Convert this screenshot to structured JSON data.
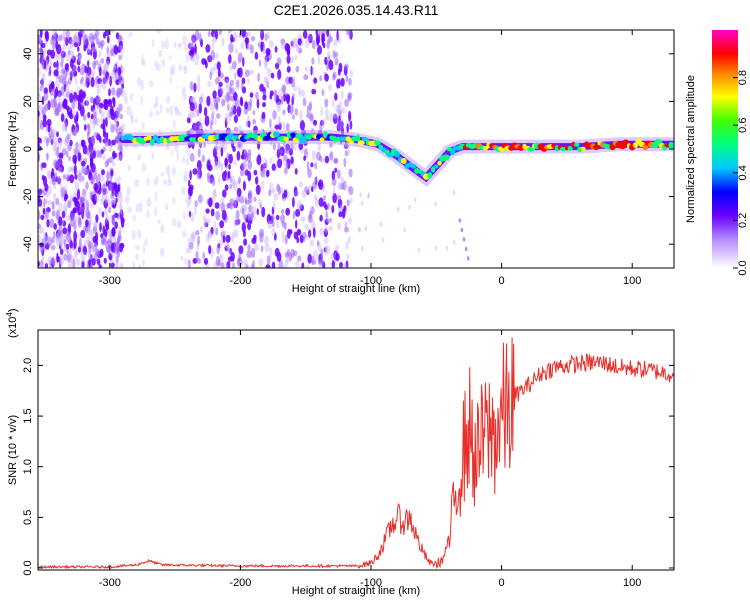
{
  "title": "C2E1.2026.035.14.43.R11",
  "chart_data": [
    {
      "type": "heatmap",
      "name": "spectrogram",
      "xlabel": "Height of straight line (km)",
      "ylabel": "Frequency (Hz)",
      "xlim": [
        -355,
        132
      ],
      "ylim": [
        -50,
        50
      ],
      "x_ticks": [
        -300,
        -200,
        -100,
        0,
        100
      ],
      "x_tick_labels": [
        "-300",
        "-200",
        "-100",
        "0",
        "100"
      ],
      "y_ticks": [
        -40,
        -20,
        0,
        20,
        40
      ],
      "y_tick_labels": [
        "-40",
        "-20",
        "0",
        "20",
        "40"
      ],
      "colorbar": {
        "label": "Normalized spectral amplitude",
        "range": [
          0,
          1
        ],
        "ticks": [
          0.0,
          0.2,
          0.4,
          0.6,
          0.8
        ],
        "tick_labels": [
          "0.0",
          "0.2",
          "0.4",
          "0.6",
          "0.8"
        ],
        "colors": [
          "#ffffff",
          "#6a00ff",
          "#0000ff",
          "#00ffff",
          "#00ff00",
          "#ffff00",
          "#ff0000",
          "#ff00c8"
        ]
      },
      "signal_track": {
        "x": [
          -290,
          -260,
          -230,
          -200,
          -160,
          -130,
          -112,
          -95,
          -80,
          -68,
          -58,
          -48,
          -40,
          -30,
          -10,
          0,
          30,
          60,
          90,
          132
        ],
        "y": [
          4,
          4,
          5,
          5,
          5,
          5,
          4,
          2,
          -3,
          -8,
          -12,
          -6,
          -1,
          1,
          1,
          1,
          1,
          1,
          2,
          2
        ]
      },
      "noise_regions": [
        {
          "x": [
            -355,
            -290
          ],
          "level": "high"
        },
        {
          "x": [
            -290,
            -240
          ],
          "level": "low"
        },
        {
          "x": [
            -240,
            -115
          ],
          "level": "high"
        }
      ]
    },
    {
      "type": "line",
      "name": "snr",
      "xlabel": "Height of straight line (km)",
      "ylabel": "SNR (10 * v/v)",
      "y_multiplier": "(x10",
      "y_multiplier_exp": "4",
      "y_multiplier_close": ")",
      "xlim": [
        -355,
        132
      ],
      "ylim": [
        -0.02,
        2.35
      ],
      "x_ticks": [
        -300,
        -200,
        -100,
        0,
        100
      ],
      "x_tick_labels": [
        "-300",
        "-200",
        "-100",
        "0",
        "100"
      ],
      "y_ticks": [
        0.0,
        0.5,
        1.0,
        1.5,
        2.0
      ],
      "y_tick_labels": [
        "0.0",
        "0.5",
        "1.0",
        "1.5",
        "2.0"
      ],
      "color": "#e8302a",
      "series": [
        {
          "x": [
            -355,
            -300,
            -280,
            -270,
            -260,
            -200,
            -150,
            -110,
            -100,
            -95,
            -90,
            -85,
            -80,
            -75,
            -70,
            -65,
            -60,
            -55,
            -50,
            -45,
            -40,
            -35,
            -30,
            -25,
            -20,
            -15,
            -10,
            -5,
            0,
            5,
            10,
            20,
            30,
            40,
            50,
            60,
            70,
            80,
            90,
            100,
            110,
            120,
            132
          ],
          "y": [
            0.01,
            0.01,
            0.03,
            0.07,
            0.03,
            0.02,
            0.02,
            0.02,
            0.05,
            0.12,
            0.25,
            0.4,
            0.5,
            0.45,
            0.5,
            0.3,
            0.15,
            0.05,
            0.04,
            0.08,
            0.3,
            0.75,
            1.1,
            1.4,
            1.05,
            1.25,
            1.35,
            1.3,
            1.5,
            1.55,
            1.7,
            1.8,
            1.92,
            1.98,
            2.0,
            2.02,
            2.03,
            2.02,
            1.98,
            1.97,
            1.96,
            1.94,
            1.91
          ]
        }
      ]
    }
  ]
}
